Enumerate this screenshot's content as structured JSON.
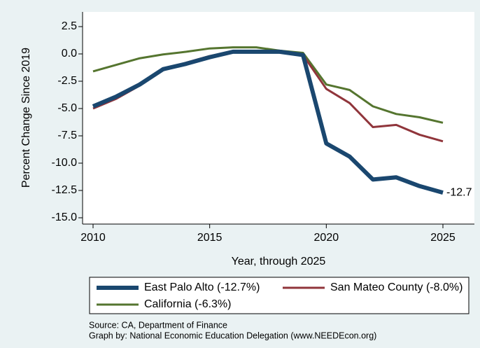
{
  "chart_data": {
    "type": "line",
    "x_label": "Year, through 2025",
    "y_label": "Percent Change Since 2019",
    "x": [
      2010,
      2011,
      2012,
      2013,
      2014,
      2015,
      2016,
      2017,
      2018,
      2019,
      2020,
      2021,
      2022,
      2023,
      2024,
      2025
    ],
    "series": [
      {
        "name": "East Palo Alto (-12.7%)",
        "color": "#1a476f",
        "width": 6,
        "values": [
          -4.8,
          -3.9,
          -2.8,
          -1.4,
          -0.9,
          -0.3,
          0.2,
          0.2,
          0.2,
          -0.1,
          -8.2,
          -9.4,
          -11.5,
          -11.3,
          -12.1,
          -12.7
        ]
      },
      {
        "name": "San Mateo County (-8.0%)",
        "color": "#90353b",
        "width": 3,
        "values": [
          -5.0,
          -4.1,
          -2.9,
          -1.5,
          -0.8,
          -0.2,
          0.2,
          0.2,
          0.2,
          -0.1,
          -3.2,
          -4.5,
          -6.7,
          -6.5,
          -7.4,
          -8.0
        ]
      },
      {
        "name": "California (-6.3%)",
        "color": "#55752f",
        "width": 3,
        "values": [
          -1.6,
          -1.0,
          -0.4,
          -0.05,
          0.2,
          0.5,
          0.6,
          0.6,
          0.3,
          0.1,
          -2.8,
          -3.3,
          -4.8,
          -5.5,
          -5.8,
          -6.3
        ]
      }
    ],
    "annotation": "-12.7",
    "xlim": [
      2010,
      2025
    ],
    "xticks": [
      2010,
      2015,
      2020,
      2025
    ],
    "ylim": [
      -15,
      2.5
    ],
    "yticks": [
      2.5,
      {
        "value": 0,
        "label": "0.0"
      },
      -2.5,
      {
        "value": -5,
        "label": "-5.0"
      },
      -7.5,
      {
        "value": -10,
        "label": "-10.0"
      },
      -12.5,
      {
        "value": -15,
        "label": "-15.0"
      }
    ],
    "grid": false,
    "source_lines": [
      "Source: CA, Department of Finance",
      "Graph by: National Economic Education Delegation (www.NEEDEcon.org)"
    ]
  }
}
